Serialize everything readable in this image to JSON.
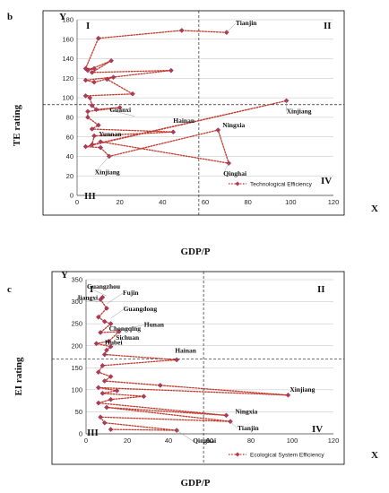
{
  "chart_data": [
    {
      "type": "line",
      "panel_label": "b",
      "xlabel": "GDP/P",
      "ylabel": "TE rating",
      "x_axis_letter": "X",
      "y_axis_letter": "Y",
      "xlim": [
        0,
        120
      ],
      "ylim": [
        0,
        180
      ],
      "xticks": [
        0,
        20,
        40,
        60,
        80,
        100,
        120
      ],
      "yticks": [
        0,
        20,
        40,
        60,
        80,
        100,
        120,
        140,
        160,
        180
      ],
      "x_divider": 57,
      "y_divider": 93,
      "quadrants": {
        "I": "I",
        "II": "II",
        "III": "III",
        "IV": "IV"
      },
      "legend": {
        "label": "Technological Efficiency",
        "placement": "bottom-right"
      },
      "series": [
        {
          "name": "Technological Efficiency",
          "color": "#c0392b",
          "points": [
            [
              70,
              167
            ],
            [
              49,
              169
            ],
            [
              10,
              161
            ],
            [
              4,
              130
            ],
            [
              8,
              130
            ],
            [
              5,
              128
            ],
            [
              16,
              138
            ],
            [
              7,
              126
            ],
            [
              44,
              128
            ],
            [
              4,
              118
            ],
            [
              8,
              116
            ],
            [
              17,
              121
            ],
            [
              14,
              119
            ],
            [
              26,
              104
            ],
            [
              4,
              102
            ],
            [
              6,
              100
            ],
            [
              7,
              92
            ],
            [
              9,
              88
            ],
            [
              20,
              90
            ],
            [
              5,
              86
            ],
            [
              5,
              80
            ],
            [
              10,
              72
            ],
            [
              7,
              68
            ],
            [
              45,
              65
            ],
            [
              8,
              61
            ],
            [
              7,
              52
            ],
            [
              98,
              97
            ],
            [
              4,
              50
            ],
            [
              11,
              49
            ],
            [
              15,
              40
            ],
            [
              66,
              67
            ],
            [
              71,
              33
            ],
            [
              11,
              55
            ]
          ]
        }
      ],
      "annotations": [
        {
          "text": "Tianjin",
          "x": 70,
          "y": 167
        },
        {
          "text": "Guanxi",
          "x": 27,
          "y": 81
        },
        {
          "text": "Hainan",
          "x": 45,
          "y": 65
        },
        {
          "text": "Xinjiang",
          "x": 98,
          "y": 97
        },
        {
          "text": "Yunnan",
          "x": 11,
          "y": 55
        },
        {
          "text": "Ningxia",
          "x": 66,
          "y": 67
        },
        {
          "text": "Qinghai",
          "x": 71,
          "y": 33
        },
        {
          "text": "Xinjiang",
          "x": 15,
          "y": 40
        }
      ]
    },
    {
      "type": "line",
      "panel_label": "c",
      "xlabel": "GDP/P",
      "ylabel": "EI rating",
      "x_axis_letter": "X",
      "y_axis_letter": "Y",
      "xlim": [
        0,
        120
      ],
      "ylim": [
        0,
        350
      ],
      "xticks": [
        0,
        20,
        40,
        60,
        80,
        100,
        120
      ],
      "yticks": [
        0,
        50,
        100,
        150,
        200,
        250,
        300,
        350
      ],
      "x_divider": 57,
      "y_divider": 170,
      "quadrants": {
        "I": "I",
        "II": "II",
        "III": "III",
        "IV": "IV"
      },
      "legend": {
        "label": "Ecological System Efficiency",
        "placement": "bottom-right"
      },
      "series": [
        {
          "name": "Ecological System Efficiency",
          "color": "#c0392b",
          "points": [
            [
              8,
              310
            ],
            [
              7,
              305
            ],
            [
              10,
              285
            ],
            [
              6,
              265
            ],
            [
              9,
              255
            ],
            [
              12,
              250
            ],
            [
              7,
              230
            ],
            [
              16,
              232
            ],
            [
              11,
              210
            ],
            [
              5,
              205
            ],
            [
              12,
              198
            ],
            [
              10,
              190
            ],
            [
              9,
              180
            ],
            [
              44,
              168
            ],
            [
              8,
              155
            ],
            [
              6,
              140
            ],
            [
              12,
              130
            ],
            [
              9,
              120
            ],
            [
              36,
              110
            ],
            [
              98,
              88
            ],
            [
              6,
              105
            ],
            [
              15,
              98
            ],
            [
              8,
              92
            ],
            [
              28,
              85
            ],
            [
              12,
              78
            ],
            [
              6,
              70
            ],
            [
              68,
              42
            ],
            [
              10,
              60
            ],
            [
              70,
              28
            ],
            [
              7,
              38
            ],
            [
              9,
              25
            ],
            [
              44,
              8
            ],
            [
              12,
              10
            ]
          ]
        }
      ],
      "annotations": [
        {
          "text": "Guangzhou",
          "x": 10,
          "y": 313
        },
        {
          "text": "Jiangxi",
          "x": 6,
          "y": 300
        },
        {
          "text": "Fujin",
          "x": 10,
          "y": 295
        },
        {
          "text": "Guangdong",
          "x": 12,
          "y": 262
        },
        {
          "text": "Hunan",
          "x": 16,
          "y": 235
        },
        {
          "text": "Chongqing",
          "x": 12,
          "y": 222
        },
        {
          "text": "Sichuan",
          "x": 11,
          "y": 210
        },
        {
          "text": "Hubei",
          "x": 10,
          "y": 190
        },
        {
          "text": "Hainan",
          "x": 44,
          "y": 168
        },
        {
          "text": "Xinjiang",
          "x": 98,
          "y": 88
        },
        {
          "text": "Ningxia",
          "x": 68,
          "y": 42
        },
        {
          "text": "Tianjin",
          "x": 70,
          "y": 28
        },
        {
          "text": "Qinghai",
          "x": 44,
          "y": 8
        }
      ]
    }
  ]
}
